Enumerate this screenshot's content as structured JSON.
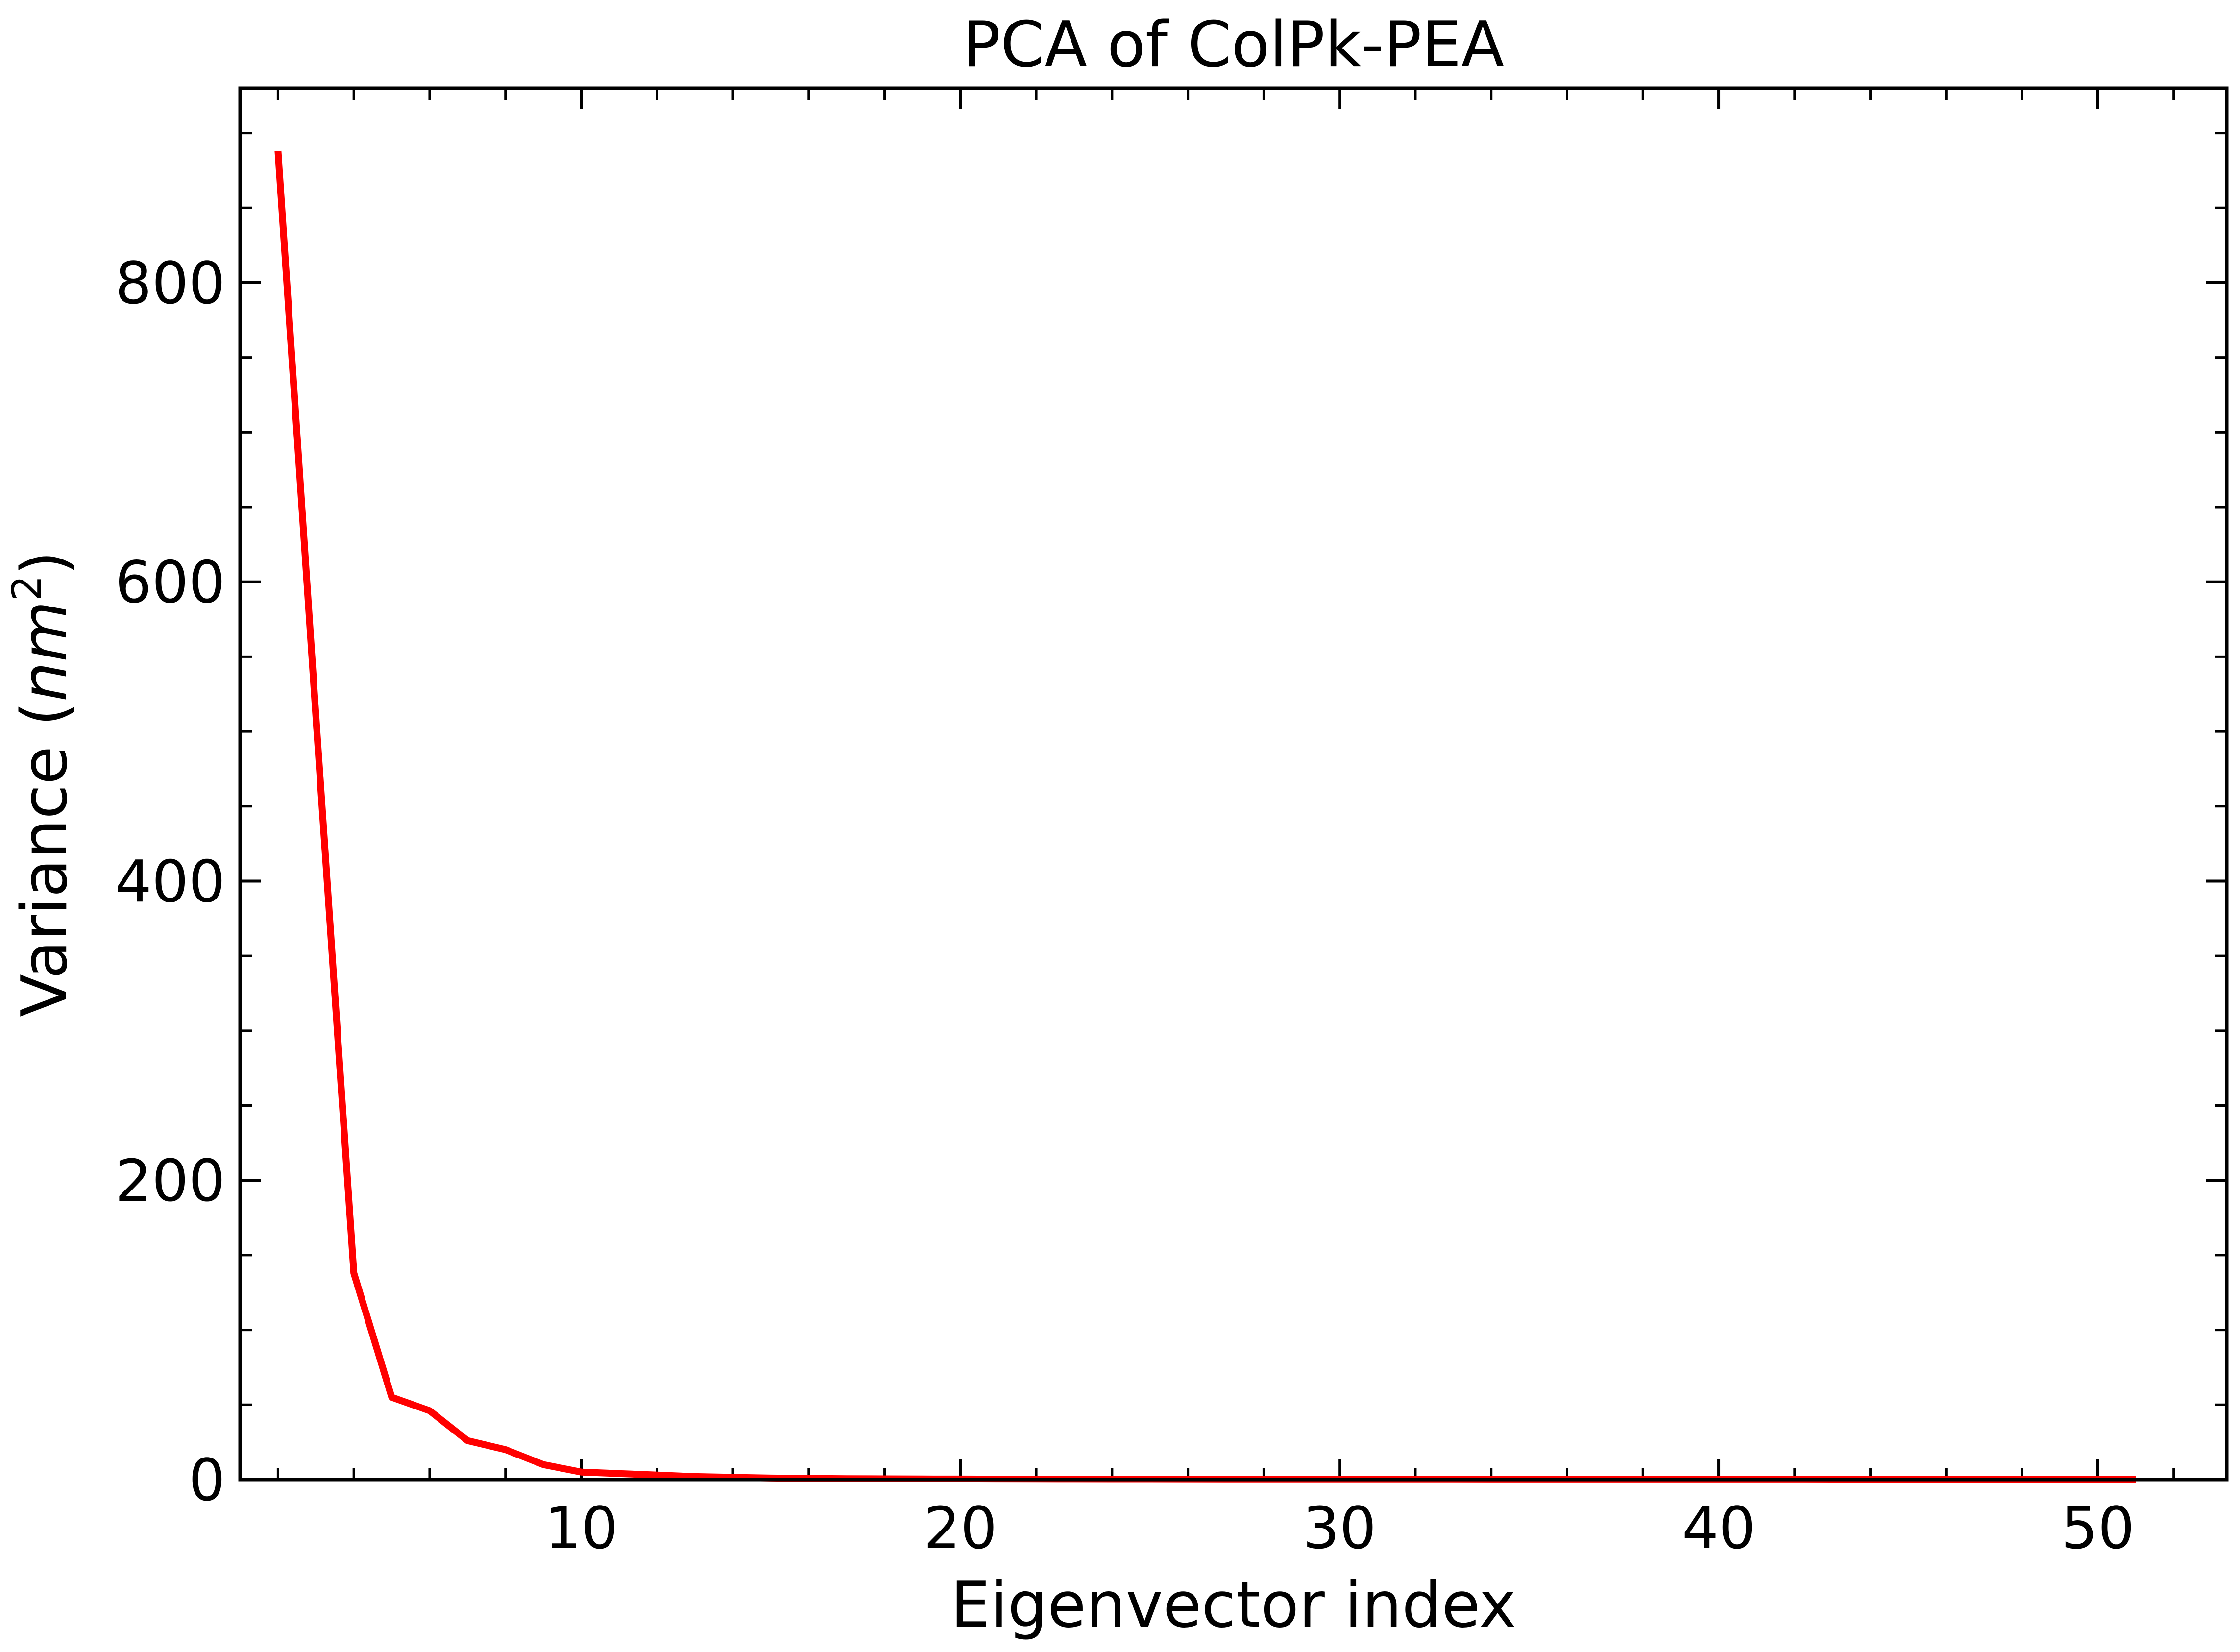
{
  "chart_data": {
    "type": "line",
    "title": "PCA of ColPk-PEA",
    "xlabel": "Eigenvector index",
    "ylabel_prefix": "Variance (",
    "ylabel_unit": "nm",
    "ylabel_exp": "2",
    "ylabel_suffix": ")",
    "xlim": [
      1.0,
      53.4
    ],
    "ylim": [
      0,
      930
    ],
    "xticks": [
      10,
      20,
      30,
      40,
      50
    ],
    "yticks": [
      0,
      200,
      400,
      600,
      800
    ],
    "x_minor_step": 2,
    "y_minor_step": 50,
    "grid": false,
    "series": [
      {
        "color": "#ff0000",
        "x": [
          2,
          3,
          4,
          5,
          6,
          7,
          8,
          9,
          10,
          11,
          12,
          13,
          14,
          15,
          16,
          17,
          18,
          19,
          20,
          21,
          22,
          23,
          24,
          25,
          26,
          27,
          28,
          29,
          30,
          31,
          32,
          33,
          34,
          35,
          36,
          37,
          38,
          39,
          40,
          41,
          42,
          43,
          44,
          45,
          46,
          47,
          48,
          49,
          50,
          51
        ],
        "y": [
          888,
          510,
          138,
          55,
          46,
          26,
          20,
          10,
          5,
          4,
          3,
          2,
          1.5,
          1,
          0.8,
          0.6,
          0.5,
          0.4,
          0.35,
          0.3,
          0.25,
          0.2,
          0.18,
          0.15,
          0.12,
          0.1,
          0.1,
          0.08,
          0.07,
          0.06,
          0.05,
          0.05,
          0.04,
          0.04,
          0.03,
          0.03,
          0.03,
          0.02,
          0.02,
          0.02,
          0.02,
          0.01,
          0.01,
          0.01,
          0.01,
          0.01,
          0.01,
          0.01,
          0.01,
          0.01
        ]
      }
    ]
  }
}
